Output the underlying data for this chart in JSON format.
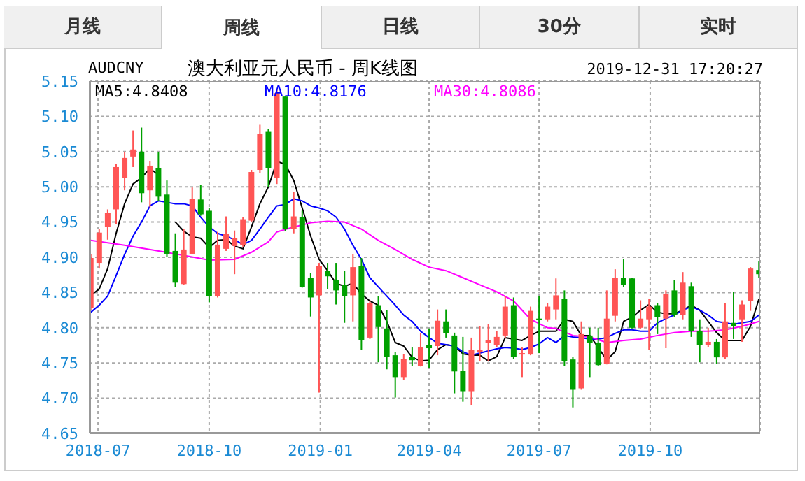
{
  "chart_data": {
    "type": "candlestick",
    "title": "澳大利亚元人民币 - 周K线图",
    "subtitle": "AUDCNY",
    "annotations": [
      "月线",
      "周线",
      "日线",
      "30分",
      "实时",
      "2019-12-31 17:20:27"
    ],
    "x": [
      "2018-06-25",
      "2018-07-02",
      "2018-07-09",
      "2018-07-16",
      "2018-07-23",
      "2018-07-30",
      "2018-08-06",
      "2018-08-13",
      "2018-08-20",
      "2018-08-27",
      "2018-09-03",
      "2018-09-10",
      "2018-09-17",
      "2018-09-24",
      "2018-10-01",
      "2018-10-08",
      "2018-10-15",
      "2018-10-22",
      "2018-10-29",
      "2018-11-05",
      "2018-11-12",
      "2018-11-19",
      "2018-11-26",
      "2018-12-03",
      "2018-12-10",
      "2018-12-17",
      "2018-12-24",
      "2018-12-31",
      "2019-01-07",
      "2019-01-14",
      "2019-01-21",
      "2019-01-28",
      "2019-02-04",
      "2019-02-11",
      "2019-02-18",
      "2019-02-25",
      "2019-03-04",
      "2019-03-11",
      "2019-03-18",
      "2019-03-25",
      "2019-04-01",
      "2019-04-08",
      "2019-04-15",
      "2019-04-22",
      "2019-04-29",
      "2019-05-06",
      "2019-05-13",
      "2019-05-20",
      "2019-05-27",
      "2019-06-03",
      "2019-06-10",
      "2019-06-17",
      "2019-06-24",
      "2019-07-01",
      "2019-07-08",
      "2019-07-15",
      "2019-07-22",
      "2019-07-29",
      "2019-08-05",
      "2019-08-12",
      "2019-08-19",
      "2019-08-26",
      "2019-09-02",
      "2019-09-09",
      "2019-09-16",
      "2019-09-23",
      "2019-09-30",
      "2019-10-07",
      "2019-10-14",
      "2019-10-21",
      "2019-10-28",
      "2019-11-04",
      "2019-11-11",
      "2019-11-18",
      "2019-11-25",
      "2019-12-02",
      "2019-12-09",
      "2019-12-16",
      "2019-12-23",
      "2019-12-30"
    ],
    "ohlc": [
      [
        4.828,
        4.905,
        4.825,
        4.899
      ],
      [
        4.892,
        4.94,
        4.884,
        4.935
      ],
      [
        4.943,
        4.968,
        4.925,
        4.963
      ],
      [
        4.968,
        5.032,
        4.947,
        5.028
      ],
      [
        5.013,
        5.05,
        4.995,
        5.041
      ],
      [
        5.043,
        5.08,
        5.028,
        5.053
      ],
      [
        5.05,
        5.084,
        4.978,
        4.991
      ],
      [
        4.995,
        5.036,
        4.971,
        5.03
      ],
      [
        5.026,
        5.049,
        4.98,
        4.986
      ],
      [
        4.989,
        5.009,
        4.901,
        4.905
      ],
      [
        4.909,
        4.934,
        4.858,
        4.864
      ],
      [
        4.862,
        4.94,
        4.861,
        4.911
      ],
      [
        4.905,
        4.999,
        4.904,
        4.983
      ],
      [
        4.982,
        5.003,
        4.959,
        4.961
      ],
      [
        4.966,
        4.97,
        4.836,
        4.845
      ],
      [
        4.845,
        4.936,
        4.843,
        4.918
      ],
      [
        4.912,
        4.958,
        4.909,
        4.933
      ],
      [
        4.916,
        4.938,
        4.876,
        4.927
      ],
      [
        4.917,
        4.957,
        4.915,
        4.954
      ],
      [
        4.952,
        5.024,
        4.95,
        5.021
      ],
      [
        5.024,
        5.088,
        5.019,
        5.075
      ],
      [
        5.078,
        5.082,
        5.0,
        5.026
      ],
      [
        5.013,
        5.138,
        5.004,
        5.133
      ],
      [
        5.128,
        5.129,
        4.937,
        4.94
      ],
      [
        4.94,
        4.993,
        4.934,
        4.958
      ],
      [
        4.957,
        4.966,
        4.857,
        4.858
      ],
      [
        4.871,
        4.878,
        4.816,
        4.843
      ],
      [
        4.846,
        4.892,
        4.708,
        4.888
      ],
      [
        4.881,
        4.892,
        4.855,
        4.873
      ],
      [
        4.868,
        4.892,
        4.833,
        4.853
      ],
      [
        4.861,
        4.881,
        4.807,
        4.845
      ],
      [
        4.846,
        4.904,
        4.809,
        4.886
      ],
      [
        4.888,
        4.899,
        4.769,
        4.782
      ],
      [
        4.786,
        4.838,
        4.784,
        4.835
      ],
      [
        4.832,
        4.845,
        4.751,
        4.801
      ],
      [
        4.799,
        4.825,
        4.741,
        4.759
      ],
      [
        4.761,
        4.766,
        4.701,
        4.73
      ],
      [
        4.73,
        4.763,
        4.726,
        4.756
      ],
      [
        4.759,
        4.772,
        4.746,
        4.754
      ],
      [
        4.746,
        4.792,
        4.745,
        4.772
      ],
      [
        4.775,
        4.799,
        4.743,
        4.771
      ],
      [
        4.774,
        4.826,
        4.761,
        4.81
      ],
      [
        4.809,
        4.826,
        4.786,
        4.792
      ],
      [
        4.789,
        4.793,
        4.707,
        4.738
      ],
      [
        4.739,
        4.787,
        4.695,
        4.71
      ],
      [
        4.71,
        4.786,
        4.69,
        4.769
      ],
      [
        4.766,
        4.802,
        4.753,
        4.769
      ],
      [
        4.778,
        4.805,
        4.753,
        4.782
      ],
      [
        4.776,
        4.795,
        4.772,
        4.787
      ],
      [
        4.789,
        4.845,
        4.786,
        4.83
      ],
      [
        4.832,
        4.843,
        4.756,
        4.759
      ],
      [
        4.762,
        4.772,
        4.73,
        4.764
      ],
      [
        4.762,
        4.83,
        4.761,
        4.824
      ],
      [
        4.813,
        4.845,
        4.764,
        4.811
      ],
      [
        4.812,
        4.835,
        4.809,
        4.83
      ],
      [
        4.826,
        4.87,
        4.812,
        4.846
      ],
      [
        4.841,
        4.853,
        4.746,
        4.753
      ],
      [
        4.755,
        4.759,
        4.687,
        4.712
      ],
      [
        4.714,
        4.809,
        4.712,
        4.791
      ],
      [
        4.789,
        4.8,
        4.73,
        4.779
      ],
      [
        4.779,
        4.8,
        4.746,
        4.747
      ],
      [
        4.749,
        4.853,
        4.748,
        4.813
      ],
      [
        4.817,
        4.883,
        4.809,
        4.871
      ],
      [
        4.871,
        4.897,
        4.858,
        4.861
      ],
      [
        4.87,
        4.871,
        4.799,
        4.8
      ],
      [
        4.8,
        4.839,
        4.799,
        4.813
      ],
      [
        4.812,
        4.841,
        4.769,
        4.83
      ],
      [
        4.832,
        4.835,
        4.791,
        4.815
      ],
      [
        4.813,
        4.853,
        4.771,
        4.848
      ],
      [
        4.853,
        4.868,
        4.815,
        4.818
      ],
      [
        4.818,
        4.879,
        4.812,
        4.864
      ],
      [
        4.859,
        4.864,
        4.787,
        4.795
      ],
      [
        4.795,
        4.812,
        4.751,
        4.776
      ],
      [
        4.776,
        4.8,
        4.772,
        4.78
      ],
      [
        4.78,
        4.784,
        4.749,
        4.758
      ],
      [
        4.758,
        4.835,
        4.756,
        4.809
      ],
      [
        4.807,
        4.851,
        4.784,
        4.802
      ],
      [
        4.812,
        4.839,
        4.78,
        4.833
      ],
      [
        4.838,
        4.886,
        4.824,
        4.884
      ],
      [
        4.882,
        4.894,
        4.871,
        4.876
      ]
    ],
    "colors": [
      "#ff5555",
      "#ff5555",
      "#ff5555",
      "#ff5555",
      "#ff5555",
      "#ff5555",
      "#00a000",
      "#ff5555",
      "#00a000",
      "#00a000",
      "#00a000",
      "#ff5555",
      "#ff5555",
      "#00a000",
      "#00a000",
      "#ff5555",
      "#ff5555",
      "#ff5555",
      "#ff5555",
      "#ff5555",
      "#ff5555",
      "#00a000",
      "#ff5555",
      "#00a000",
      "#ff5555",
      "#00a000",
      "#00a000",
      "#ff5555",
      "#00a000",
      "#00a000",
      "#00a000",
      "#ff5555",
      "#00a000",
      "#ff5555",
      "#00a000",
      "#00a000",
      "#00a000",
      "#ff5555",
      "#00a000",
      "#ff5555",
      "#00a000",
      "#ff5555",
      "#00a000",
      "#00a000",
      "#00a000",
      "#ff5555",
      "#ff5555",
      "#ff5555",
      "#ff5555",
      "#ff5555",
      "#00a000",
      "#ff5555",
      "#ff5555",
      "#00a000",
      "#ff5555",
      "#ff5555",
      "#00a000",
      "#00a000",
      "#ff5555",
      "#00a000",
      "#00a000",
      "#ff5555",
      "#ff5555",
      "#00a000",
      "#00a000",
      "#ff5555",
      "#ff5555",
      "#00a000",
      "#ff5555",
      "#00a000",
      "#ff5555",
      "#00a000",
      "#00a000",
      "#ff5555",
      "#00a000",
      "#ff5555",
      "#00a000",
      "#ff5555",
      "#ff5555",
      "#00a000"
    ],
    "series": [
      {
        "name": "MA5:4.8408",
        "type": "line",
        "color": "#000000",
        "values": [
          4.846,
          4.855,
          4.884,
          4.934,
          4.976,
          5.004,
          5.013,
          5.026,
          5.017,
          null,
          4.95,
          4.937,
          4.929,
          4.927,
          4.914,
          4.924,
          4.925,
          4.916,
          4.912,
          4.943,
          4.976,
          5.0,
          5.036,
          5.032,
          5.009,
          4.97,
          4.93,
          4.897,
          4.881,
          4.863,
          4.859,
          4.863,
          4.848,
          4.838,
          4.832,
          4.809,
          4.779,
          4.774,
          4.758,
          4.753,
          4.754,
          4.769,
          4.776,
          4.774,
          4.763,
          4.761,
          4.761,
          4.753,
          4.759,
          4.786,
          4.784,
          4.782,
          4.789,
          4.795,
          4.795,
          4.795,
          4.812,
          4.809,
          4.789,
          4.789,
          4.772,
          4.754,
          4.766,
          4.809,
          4.815,
          4.825,
          4.833,
          4.822,
          4.82,
          4.82,
          4.825,
          4.832,
          4.825,
          4.809,
          4.793,
          4.782,
          4.782,
          4.782,
          4.802,
          4.841
        ]
      },
      {
        "name": "MA10:4.8176",
        "type": "line",
        "color": "#0000ff",
        "values": [
          4.822,
          4.832,
          4.845,
          4.874,
          4.904,
          4.93,
          4.95,
          4.973,
          4.98,
          4.978,
          4.976,
          4.976,
          4.973,
          4.957,
          4.943,
          4.934,
          4.93,
          4.925,
          4.918,
          4.924,
          4.94,
          4.957,
          4.973,
          4.975,
          4.983,
          4.98,
          4.973,
          4.97,
          4.966,
          4.957,
          4.94,
          4.917,
          4.897,
          4.871,
          4.858,
          4.845,
          4.832,
          4.818,
          4.809,
          4.795,
          4.786,
          4.778,
          4.776,
          4.774,
          4.766,
          4.761,
          4.764,
          4.767,
          4.77,
          4.772,
          4.771,
          4.769,
          4.772,
          4.777,
          4.786,
          4.779,
          4.789,
          4.787,
          4.786,
          4.784,
          4.784,
          4.786,
          4.792,
          4.797,
          4.797,
          4.795,
          4.795,
          4.807,
          4.813,
          4.818,
          4.825,
          4.83,
          4.825,
          4.818,
          4.809,
          4.807,
          4.805,
          4.807,
          4.809,
          4.818
        ]
      },
      {
        "name": "MA30:4.8086",
        "type": "line",
        "color": "#ff00ff",
        "x": [
          "2018-06-25",
          "2018-07-23",
          "2018-08-27",
          "2018-10-01",
          "2018-10-22",
          "2018-11-05",
          "2018-11-19",
          "2018-11-26",
          "2018-12-10",
          "2018-12-24",
          "2019-01-07",
          "2019-01-21",
          "2019-02-04",
          "2019-02-18",
          "2019-03-04",
          "2019-03-18",
          "2019-04-01",
          "2019-04-15",
          "2019-04-29",
          "2019-05-13",
          "2019-05-27",
          "2019-06-10",
          "2019-06-24",
          "2019-07-08",
          "2019-07-15",
          "2019-07-29",
          "2019-08-12",
          "2019-08-26",
          "2019-09-09",
          "2019-09-23",
          "2019-10-07",
          "2019-10-21",
          "2019-11-04",
          "2019-11-18",
          "2019-12-02",
          "2019-12-16",
          "2019-12-30"
        ],
        "values": [
          4.924,
          4.917,
          4.907,
          4.896,
          4.897,
          4.907,
          4.922,
          4.936,
          4.943,
          4.949,
          4.951,
          4.95,
          4.94,
          4.924,
          4.911,
          4.897,
          4.886,
          4.881,
          4.871,
          4.861,
          4.851,
          4.838,
          4.812,
          4.8,
          4.799,
          4.789,
          4.787,
          4.779,
          4.782,
          4.784,
          4.789,
          4.793,
          4.795,
          4.795,
          4.797,
          4.802,
          4.809
        ]
      }
    ],
    "xlim": [
      "2018-06-24",
      "2019-12-31"
    ],
    "xticks": [
      "2018-07",
      "2018-10",
      "2019-01",
      "2019-04",
      "2019-07",
      "2019-10"
    ],
    "ylim": [
      4.65,
      5.15
    ],
    "yticks": [
      4.65,
      {
        "value": 4.7,
        "label": "4.70"
      },
      4.75,
      {
        "value": 4.8,
        "label": "4.80"
      },
      4.85,
      {
        "value": 4.9,
        "label": "4.90"
      },
      4.95,
      {
        "value": 5.0,
        "label": "5.00"
      },
      5.05,
      {
        "value": 5.1,
        "label": "5.10"
      },
      5.15
    ],
    "grid": true,
    "legend": "top"
  }
}
